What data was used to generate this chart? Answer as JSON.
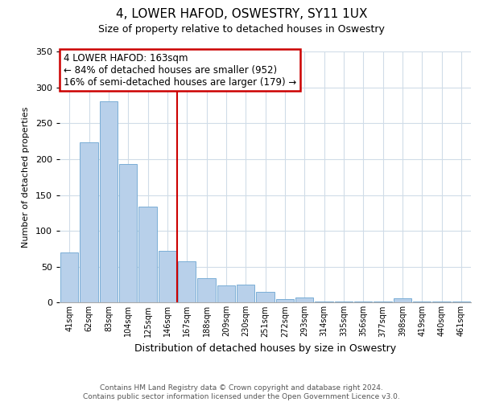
{
  "title": "4, LOWER HAFOD, OSWESTRY, SY11 1UX",
  "subtitle": "Size of property relative to detached houses in Oswestry",
  "xlabel": "Distribution of detached houses by size in Oswestry",
  "ylabel": "Number of detached properties",
  "bar_labels": [
    "41sqm",
    "62sqm",
    "83sqm",
    "104sqm",
    "125sqm",
    "146sqm",
    "167sqm",
    "188sqm",
    "209sqm",
    "230sqm",
    "251sqm",
    "272sqm",
    "293sqm",
    "314sqm",
    "335sqm",
    "356sqm",
    "377sqm",
    "398sqm",
    "419sqm",
    "440sqm",
    "461sqm"
  ],
  "bar_values": [
    70,
    223,
    280,
    193,
    134,
    72,
    58,
    34,
    24,
    25,
    15,
    5,
    7,
    1,
    1,
    1,
    1,
    6,
    1,
    1,
    1
  ],
  "bar_color": "#b8d0ea",
  "bar_edge_color": "#7aaed6",
  "vline_pos": 5.5,
  "vline_color": "#cc0000",
  "annotation_text": "4 LOWER HAFOD: 163sqm\n← 84% of detached houses are smaller (952)\n16% of semi-detached houses are larger (179) →",
  "annotation_box_color": "#ffffff",
  "annotation_box_edge": "#cc0000",
  "ylim": [
    0,
    350
  ],
  "yticks": [
    0,
    50,
    100,
    150,
    200,
    250,
    300,
    350
  ],
  "footer_line1": "Contains HM Land Registry data © Crown copyright and database right 2024.",
  "footer_line2": "Contains public sector information licensed under the Open Government Licence v3.0.",
  "background_color": "#ffffff",
  "grid_color": "#d0dce8"
}
